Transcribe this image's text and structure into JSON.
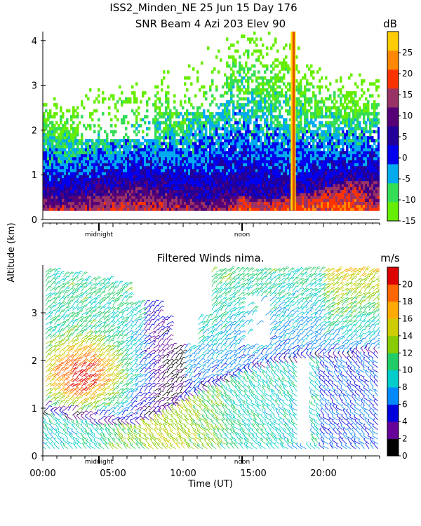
{
  "header": {
    "title_line1": "ISS2_Minden_NE  25 Jun 15 Day 176",
    "title_line2": "SNR Beam 4 Azi 203 Elev 90"
  },
  "shared_axis": {
    "ylabel": "Altitude (km)",
    "xlabel": "Time (UT)",
    "midnight_label": "midnight",
    "noon_label": "noon"
  },
  "chart_data": [
    {
      "type": "heatmap",
      "title": "SNR Beam 4 Azi 203 Elev 90",
      "xlabel": "Time (UT)",
      "ylabel": "Altitude (km)",
      "xlim": [
        0,
        24
      ],
      "ylim": [
        0,
        4.2
      ],
      "yticks": [
        "0",
        "1",
        "2",
        "3",
        "4"
      ],
      "colorbar": {
        "unit": "dB",
        "ticks": [
          "25",
          "20",
          "15",
          "10",
          "5",
          "0",
          "-5",
          "-10",
          "-15"
        ],
        "range": [
          -15,
          30
        ],
        "colors": [
          "#66ee00",
          "#33dd55",
          "#00aaee",
          "#0000ee",
          "#220099",
          "#550077",
          "#993366",
          "#ff3300",
          "#ff8800",
          "#ffcc00"
        ]
      },
      "features": {
        "sampling_floor_km": 0.2,
        "strong_echo_column_utc": 17.9,
        "surface_layer_top_km": [
          0.55,
          0.5,
          0.45,
          0.55,
          0.65,
          0.7,
          0.75,
          0.75,
          0.7,
          0.6,
          0.5,
          0.45,
          0.45,
          0.5,
          0.55,
          0.5,
          0.45,
          0.5,
          0.55,
          0.6,
          0.7,
          0.8,
          0.85,
          0.9,
          0.95
        ]
      }
    },
    {
      "type": "barbs",
      "title": "Filtered Winds nima.",
      "xlabel": "Time (UT)",
      "ylabel": "Altitude (km)",
      "xlim": [
        0,
        24
      ],
      "ylim": [
        0,
        4
      ],
      "xticks": [
        "00:00",
        "05:00",
        "10:00",
        "15:00",
        "20:00"
      ],
      "yticks": [
        "0",
        "1",
        "2",
        "3"
      ],
      "colorbar": {
        "unit": "m/s",
        "ticks": [
          "20",
          "18",
          "16",
          "14",
          "12",
          "10",
          "8",
          "6",
          "4",
          "2",
          "0"
        ],
        "range": [
          0,
          22
        ],
        "colors": [
          "#000000",
          "#660099",
          "#0000dd",
          "#0088ff",
          "#00cccc",
          "#22cc66",
          "#88cc00",
          "#cccc00",
          "#ffaa00",
          "#ff6600",
          "#dd0000"
        ]
      },
      "features": {
        "low_level_jet_speed_ms": 20,
        "low_level_jet_center": {
          "utc": 2.5,
          "alt_km": 1.6
        },
        "wind_shift_line_km": [
          0.95,
          0.9,
          0.85,
          0.8,
          0.75,
          0.72,
          0.7,
          0.75,
          0.85,
          1.0,
          1.2,
          1.35,
          1.5,
          1.6,
          1.75,
          1.85,
          1.95,
          2.0,
          2.05,
          2.1,
          2.1,
          2.1,
          2.15,
          2.2,
          2.2
        ]
      }
    }
  ]
}
